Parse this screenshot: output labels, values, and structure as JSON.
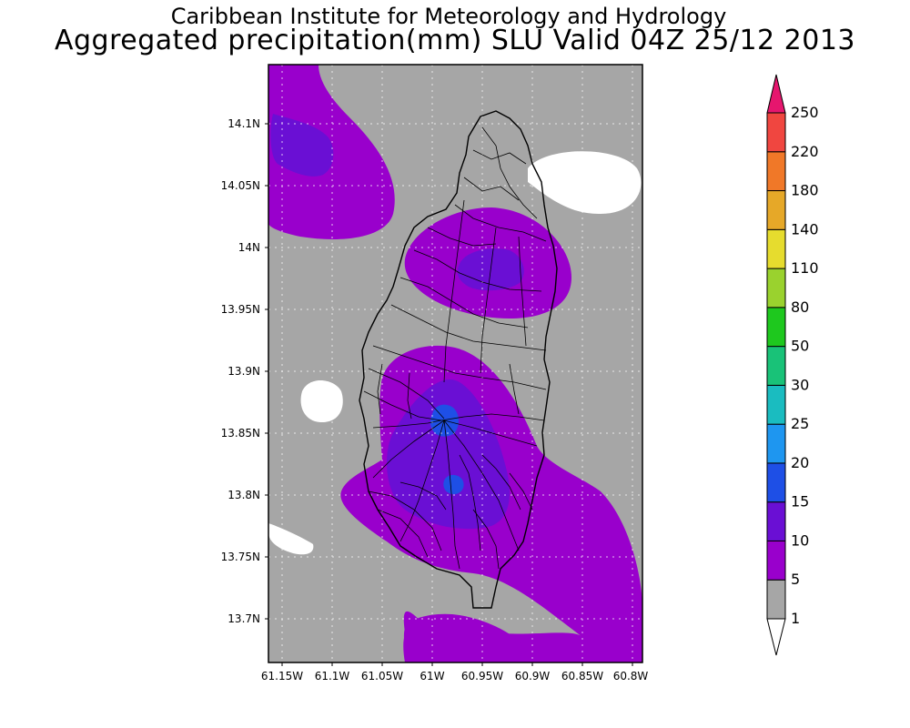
{
  "title_line1": "Caribbean Institute for Meteorology and Hydrology",
  "title_line2": "Aggregated precipitation(mm) SLU Valid 04Z 25/12 2013",
  "lat_labels": [
    "14.1N",
    "14.05N",
    "14N",
    "13.95N",
    "13.9N",
    "13.85N",
    "13.8N",
    "13.75N",
    "13.7N"
  ],
  "lon_labels": [
    "61.15W",
    "61.1W",
    "61.05W",
    "61W",
    "60.95W",
    "60.9W",
    "60.85W",
    "60.8W"
  ],
  "colorbar": {
    "labels": [
      "1",
      "5",
      "10",
      "15",
      "20",
      "25",
      "30",
      "50",
      "80",
      "110",
      "140",
      "180",
      "220",
      "250"
    ],
    "colors": [
      "#ffffff",
      "#a6a6a6",
      "#9900cc",
      "#6a0fd4",
      "#1e4fe6",
      "#1e96f0",
      "#1abcc0",
      "#19c278",
      "#1ec81e",
      "#9ad22e",
      "#e6dc2e",
      "#e6a828",
      "#f07828",
      "#f04640",
      "#e6166e"
    ]
  },
  "map_colors": {
    "background": "#a6a6a6",
    "p5_10": "#9900cc",
    "p10_15": "#6a0fd4",
    "p15_20": "#1e4fe6",
    "dry": "#ffffff"
  }
}
